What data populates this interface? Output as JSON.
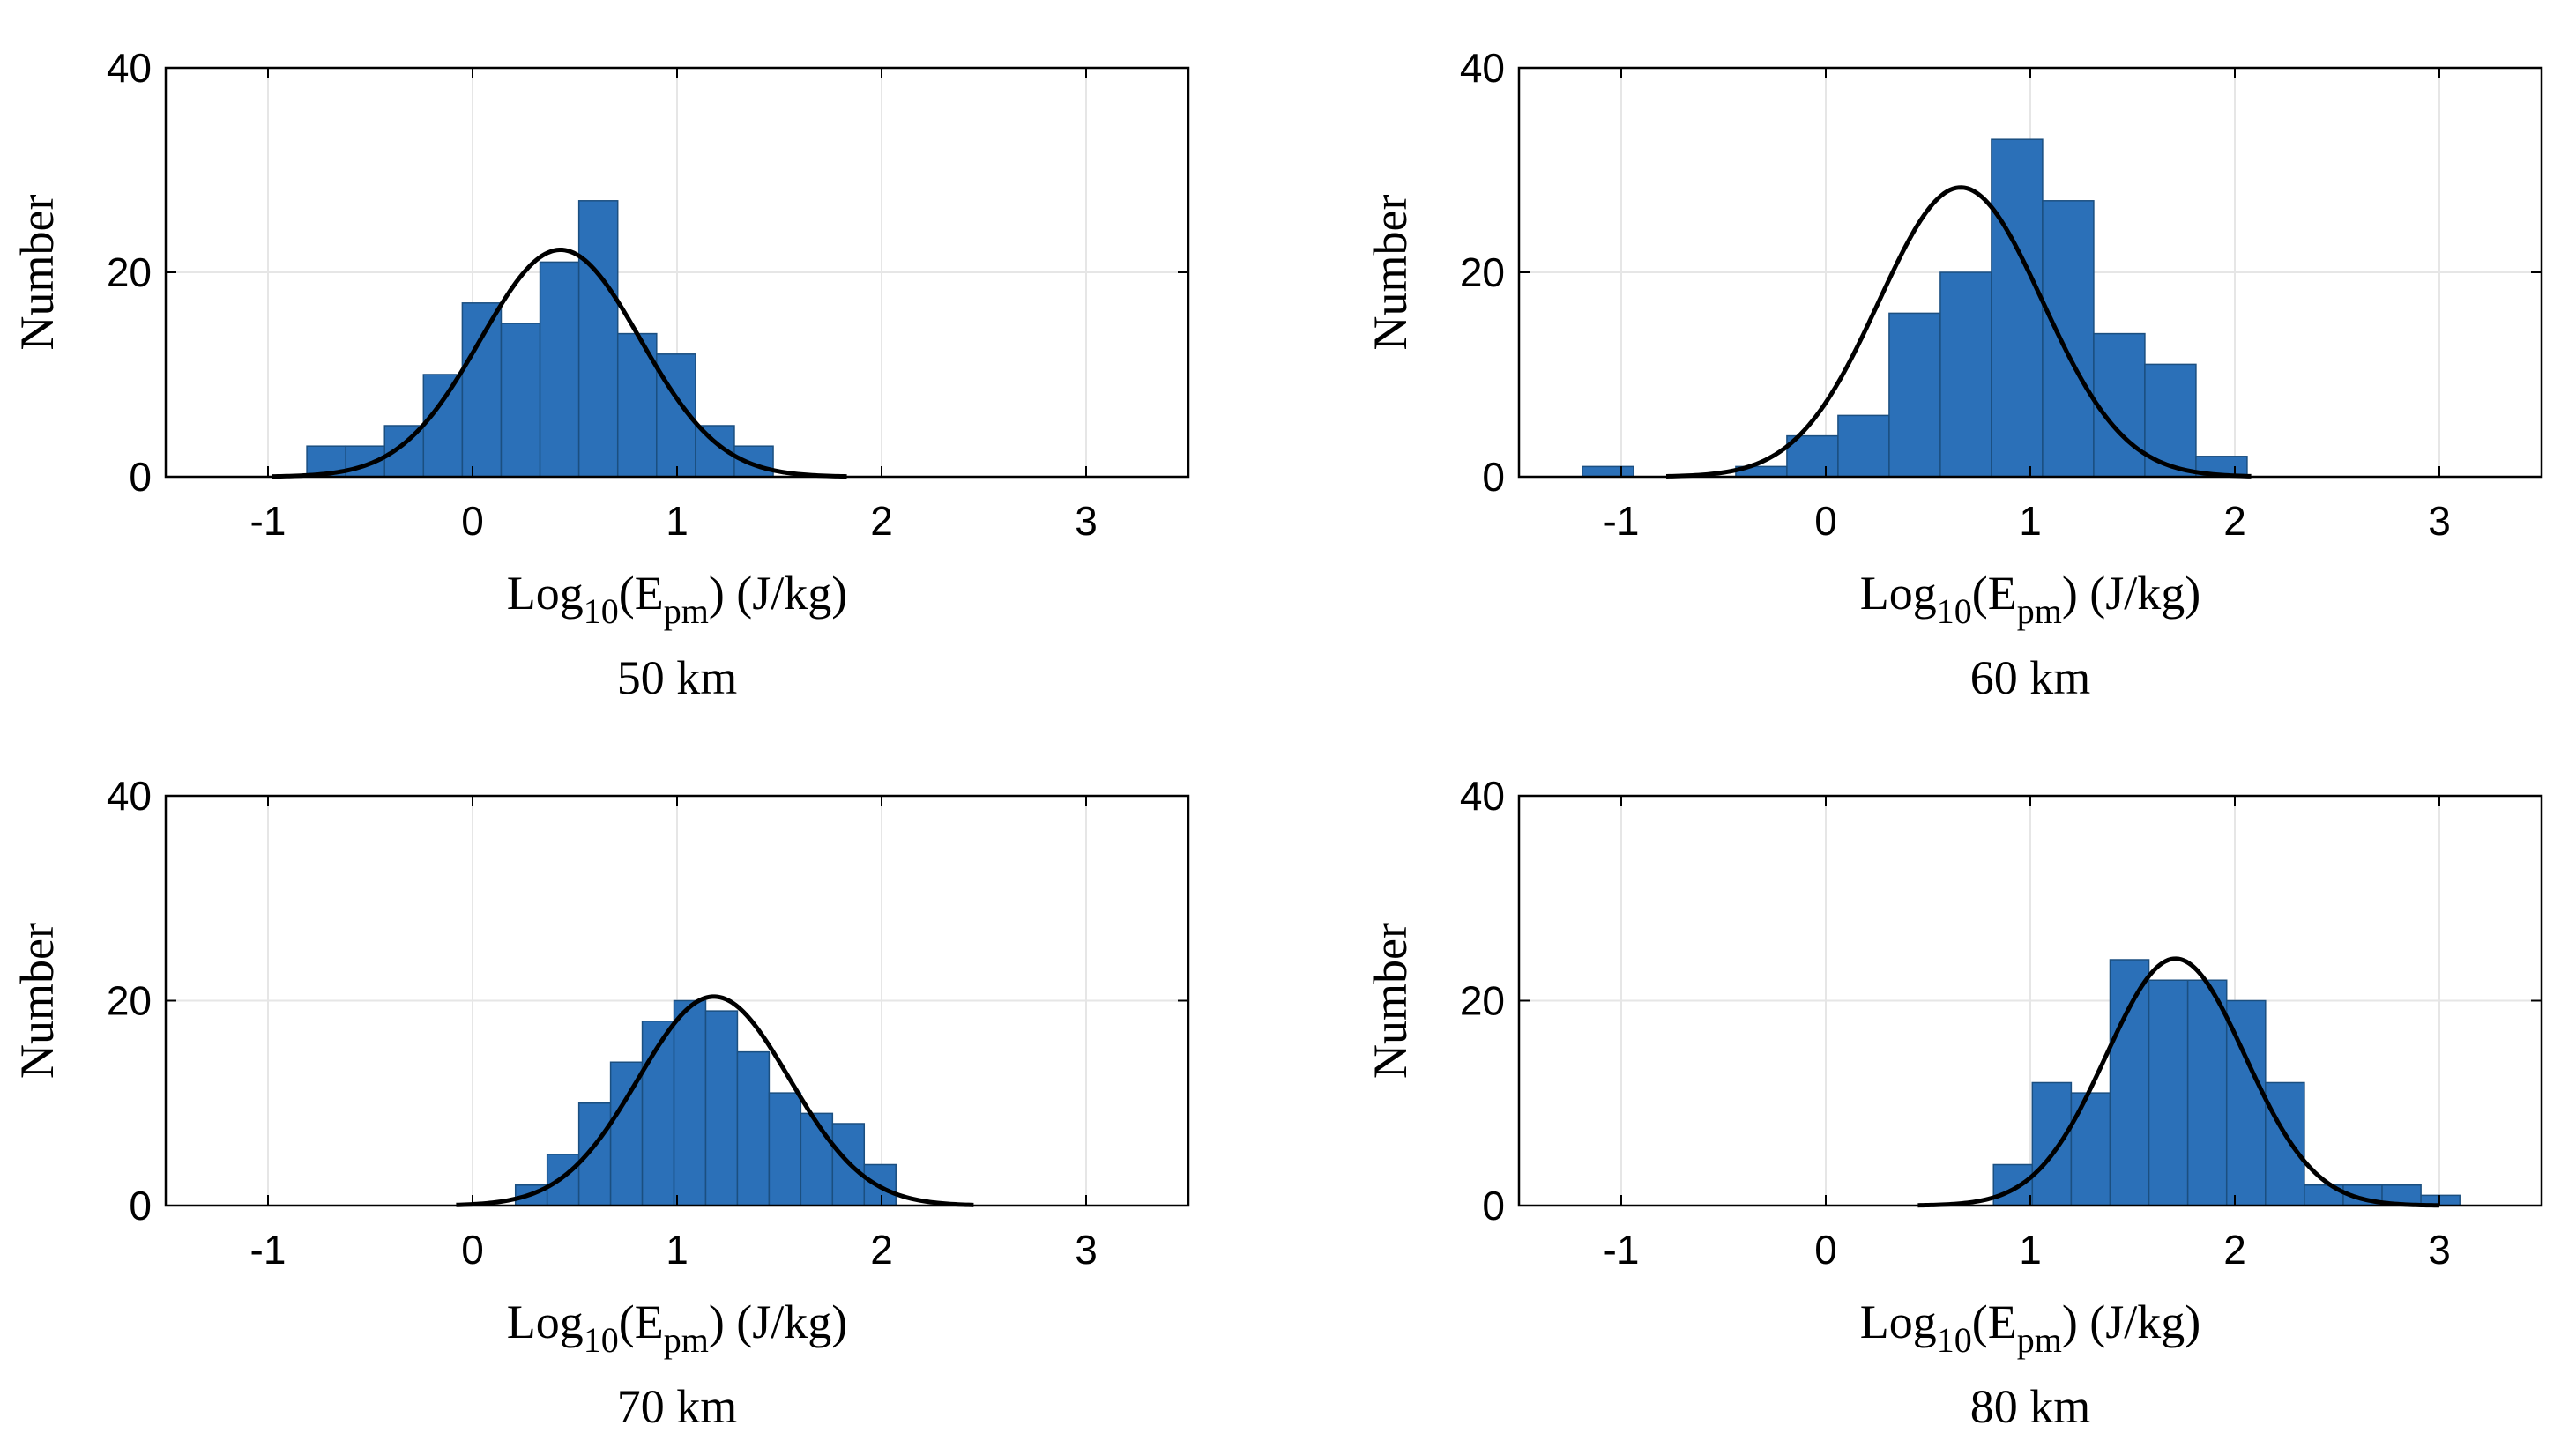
{
  "chart_data": [
    {
      "type": "bar",
      "subtitle": "50 km",
      "xlabel": {
        "prefix": "Log",
        "sub1": "10",
        "mid": "(E",
        "sub2": "pm",
        "suffix": ") (J/kg)"
      },
      "ylabel": "Number",
      "xlim": [
        -1.5,
        3.5
      ],
      "ylim": [
        0,
        40
      ],
      "xticks": [
        "-1",
        "0",
        "1",
        "2",
        "3"
      ],
      "yticks": [
        "0",
        "20",
        "40"
      ],
      "grid": true,
      "bar_color": "#2b70b8",
      "bin_width": 0.19,
      "bins": [
        {
          "x": -0.81,
          "y": 3
        },
        {
          "x": -0.62,
          "y": 3
        },
        {
          "x": -0.43,
          "y": 5
        },
        {
          "x": -0.24,
          "y": 10
        },
        {
          "x": -0.05,
          "y": 17
        },
        {
          "x": 0.14,
          "y": 15
        },
        {
          "x": 0.33,
          "y": 21
        },
        {
          "x": 0.52,
          "y": 27
        },
        {
          "x": 0.71,
          "y": 14
        },
        {
          "x": 0.9,
          "y": 12
        },
        {
          "x": 1.09,
          "y": 5
        },
        {
          "x": 1.28,
          "y": 3
        }
      ],
      "fit": {
        "type": "normal",
        "peak": 22.2,
        "mean": 0.43,
        "sd": 0.39,
        "x_range": [
          -0.98,
          1.83
        ]
      }
    },
    {
      "type": "bar",
      "subtitle": "60 km",
      "xlabel": {
        "prefix": "Log",
        "sub1": "10",
        "mid": "(E",
        "sub2": "pm",
        "suffix": ") (J/kg)"
      },
      "ylabel": "Number",
      "xlim": [
        -1.5,
        3.5
      ],
      "ylim": [
        0,
        40
      ],
      "xticks": [
        "-1",
        "0",
        "1",
        "2",
        "3"
      ],
      "yticks": [
        "0",
        "20",
        "40"
      ],
      "grid": true,
      "bar_color": "#2b70b8",
      "bin_width": 0.25,
      "bins": [
        {
          "x": -1.19,
          "y": 1
        },
        {
          "x": -0.94,
          "y": 0
        },
        {
          "x": -0.69,
          "y": 0
        },
        {
          "x": -0.44,
          "y": 1
        },
        {
          "x": -0.19,
          "y": 4
        },
        {
          "x": 0.06,
          "y": 6
        },
        {
          "x": 0.31,
          "y": 16
        },
        {
          "x": 0.56,
          "y": 20
        },
        {
          "x": 0.81,
          "y": 33
        },
        {
          "x": 1.06,
          "y": 27
        },
        {
          "x": 1.31,
          "y": 14
        },
        {
          "x": 1.56,
          "y": 11
        },
        {
          "x": 1.81,
          "y": 2
        }
      ],
      "fit": {
        "type": "normal",
        "peak": 28.3,
        "mean": 0.66,
        "sd": 0.4,
        "x_range": [
          -0.78,
          2.08
        ]
      }
    },
    {
      "type": "bar",
      "subtitle": "70 km",
      "xlabel": {
        "prefix": "Log",
        "sub1": "10",
        "mid": "(E",
        "sub2": "pm",
        "suffix": ") (J/kg)"
      },
      "ylabel": "Number",
      "xlim": [
        -1.5,
        3.5
      ],
      "ylim": [
        0,
        40
      ],
      "xticks": [
        "-1",
        "0",
        "1",
        "2",
        "3"
      ],
      "yticks": [
        "0",
        "20",
        "40"
      ],
      "grid": true,
      "bar_color": "#2b70b8",
      "bin_width": 0.155,
      "bins": [
        {
          "x": 0.21,
          "y": 2
        },
        {
          "x": 0.365,
          "y": 5
        },
        {
          "x": 0.52,
          "y": 10
        },
        {
          "x": 0.675,
          "y": 14
        },
        {
          "x": 0.83,
          "y": 18
        },
        {
          "x": 0.985,
          "y": 20
        },
        {
          "x": 1.14,
          "y": 19
        },
        {
          "x": 1.295,
          "y": 15
        },
        {
          "x": 1.45,
          "y": 11
        },
        {
          "x": 1.605,
          "y": 9
        },
        {
          "x": 1.76,
          "y": 8
        },
        {
          "x": 1.915,
          "y": 4
        }
      ],
      "fit": {
        "type": "normal",
        "peak": 20.4,
        "mean": 1.18,
        "sd": 0.37,
        "x_range": [
          -0.08,
          2.45
        ]
      }
    },
    {
      "type": "bar",
      "subtitle": "80 km",
      "xlabel": {
        "prefix": "Log",
        "sub1": "10",
        "mid": "(E",
        "sub2": "pm",
        "suffix": ") (J/kg)"
      },
      "ylabel": "Number",
      "xlim": [
        -1.5,
        3.5
      ],
      "ylim": [
        0,
        40
      ],
      "xticks": [
        "-1",
        "0",
        "1",
        "2",
        "3"
      ],
      "yticks": [
        "0",
        "20",
        "40"
      ],
      "grid": true,
      "bar_color": "#2b70b8",
      "bin_width": 0.19,
      "bins": [
        {
          "x": 0.82,
          "y": 4
        },
        {
          "x": 1.01,
          "y": 12
        },
        {
          "x": 1.2,
          "y": 11
        },
        {
          "x": 1.39,
          "y": 24
        },
        {
          "x": 1.58,
          "y": 22
        },
        {
          "x": 1.77,
          "y": 22
        },
        {
          "x": 1.96,
          "y": 20
        },
        {
          "x": 2.15,
          "y": 12
        },
        {
          "x": 2.34,
          "y": 2
        },
        {
          "x": 2.53,
          "y": 2
        },
        {
          "x": 2.72,
          "y": 2
        },
        {
          "x": 2.91,
          "y": 1
        }
      ],
      "fit": {
        "type": "normal",
        "peak": 24.1,
        "mean": 1.71,
        "sd": 0.34,
        "x_range": [
          0.45,
          3.0
        ]
      }
    }
  ]
}
